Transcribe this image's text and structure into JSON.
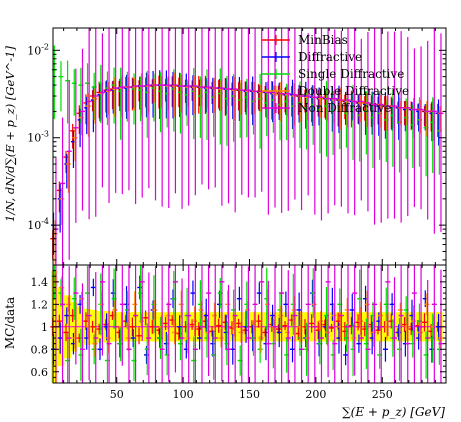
{
  "chart_data": {
    "type": "scatter",
    "title": "",
    "xlabel": "∑(E + p_z) [GeV]",
    "x_ticks": [
      50,
      100,
      150,
      200,
      250
    ],
    "xlim": [
      2,
      298
    ],
    "top_panel": {
      "ylabel": "1/N, dN/d∑(E + p_z) [GeV^-1]",
      "yscale": "log",
      "ylim": [
        3.5e-05,
        0.018
      ],
      "y_ticks": [
        {
          "value": 0.0001,
          "label": "10^-4"
        },
        {
          "value": 0.001,
          "label": "10^-3"
        },
        {
          "value": 0.01,
          "label": "10^-2"
        }
      ]
    },
    "bottom_panel": {
      "ylabel": "MC/data",
      "ylim": [
        0.5,
        1.55
      ],
      "y_ticks": [
        0.6,
        0.8,
        1,
        1.2,
        1.4
      ],
      "reference_line": 1,
      "data_uncertainty_band_color": "#ffff00"
    },
    "legend": {
      "position": "top-right",
      "entries": [
        "MinBias",
        "Diffractive",
        "Single Diffractive",
        "Double Diffractive",
        "Non Diffractive"
      ]
    },
    "colors": {
      "MinBias": "#ff0000",
      "Diffractive": "#0000ff",
      "Single Diffractive": "#00dd00",
      "Double Diffractive": "#ff8800",
      "Non Diffractive": "#dd00dd",
      "band": "#ffff00"
    },
    "x": [
      3,
      8,
      13,
      18,
      23,
      28,
      33,
      38,
      43,
      48,
      53,
      58,
      63,
      68,
      73,
      78,
      83,
      88,
      93,
      98,
      103,
      108,
      113,
      118,
      123,
      128,
      133,
      138,
      143,
      148,
      153,
      158,
      163,
      168,
      173,
      178,
      183,
      188,
      193,
      198,
      203,
      208,
      213,
      218,
      223,
      228,
      233,
      238,
      243,
      248,
      253,
      258,
      263,
      268,
      273,
      278,
      283,
      288,
      293
    ],
    "series": [
      {
        "name": "MinBias",
        "values": [
          7e-05,
          0.00025,
          0.0006,
          0.0012,
          0.0019,
          0.0025,
          0.003,
          0.0033,
          0.0035,
          0.0036,
          0.0037,
          0.0038,
          0.0038,
          0.0039,
          0.0039,
          0.0039,
          0.004,
          0.004,
          0.004,
          0.0039,
          0.0039,
          0.0039,
          0.0038,
          0.0038,
          0.0037,
          0.0037,
          0.0036,
          0.0036,
          0.0035,
          0.0035,
          0.0034,
          0.0034,
          0.0033,
          0.0033,
          0.0032,
          0.0031,
          0.0031,
          0.003,
          0.003,
          0.0029,
          0.0029,
          0.0028,
          0.0028,
          0.0027,
          0.0026,
          0.0026,
          0.0025,
          0.0025,
          0.0024,
          0.0024,
          0.0023,
          0.0023,
          0.0022,
          0.0022,
          0.0021,
          0.0021,
          0.002,
          0.002,
          0.0019
        ]
      },
      {
        "name": "Diffractive",
        "values": [
          0.0001,
          0.0002,
          0.0005,
          0.0009,
          0.0016,
          0.0022,
          0.0027,
          0.0031,
          0.0034,
          0.0035,
          0.0037,
          0.0037,
          0.0038,
          0.0039,
          0.0039,
          0.004,
          0.004,
          0.004,
          0.0039,
          0.0039,
          0.0039,
          0.0038,
          0.0038,
          0.0037,
          0.0037,
          0.0037,
          0.0036,
          0.0036,
          0.0035,
          0.0034,
          0.0034,
          0.0033,
          0.0033,
          0.0032,
          0.0032,
          0.0031,
          0.0031,
          0.003,
          0.003,
          0.0029,
          0.0028,
          0.0028,
          0.0027,
          0.0027,
          0.0026,
          0.0026,
          0.0025,
          0.0024,
          0.0024,
          0.0023,
          0.0023,
          0.0022,
          0.0022,
          0.0021,
          0.0021,
          0.002,
          0.002,
          0.0019,
          0.0019
        ]
      },
      {
        "name": "Single Diffractive",
        "values": [
          0.006,
          0.005,
          0.0045,
          0.0042,
          0.004,
          0.0042,
          0.0038,
          0.0042,
          0.0037,
          0.004,
          0.0034,
          0.0038,
          0.0036,
          0.0035,
          0.0033,
          0.0037,
          0.0034,
          0.0032,
          0.0036,
          0.0033,
          0.0031,
          0.0034,
          0.003,
          0.0033,
          0.0029,
          0.0032,
          0.0028,
          0.003,
          0.0027,
          0.0029,
          0.0026,
          0.0028,
          0.0025,
          0.0027,
          0.0024,
          0.0026,
          0.0023,
          0.0025,
          0.0022,
          0.0024,
          0.0021,
          0.0023,
          0.002,
          0.0022,
          0.0019,
          0.0021,
          0.0018,
          0.002,
          0.0017,
          0.0019,
          0.0016,
          0.0018,
          0.0015,
          0.0017,
          0.0014,
          0.0016,
          0.0013,
          0.0015,
          0.0012
        ]
      },
      {
        "name": "Double Diffractive",
        "values": [
          8e-05,
          0.0002,
          0.0005,
          0.001,
          0.0017,
          0.0023,
          0.0028,
          0.0032,
          0.0034,
          0.0036,
          0.0037,
          0.0038,
          0.0038,
          0.0039,
          0.0039,
          0.004,
          0.004,
          0.0039,
          0.0039,
          0.0039,
          0.0038,
          0.0038,
          0.0038,
          0.0037,
          0.0037,
          0.0036,
          0.0036,
          0.0035,
          0.0035,
          0.0034,
          0.0034,
          0.0033,
          0.0033,
          0.0032,
          0.0032,
          0.0031,
          0.003,
          0.003,
          0.0029,
          0.0029,
          0.0028,
          0.0028,
          0.0027,
          0.0027,
          0.0026,
          0.0026,
          0.0025,
          0.0025,
          0.0024,
          0.0024,
          0.0023,
          0.0023,
          0.0022,
          0.0022,
          0.0021,
          0.0021,
          0.002,
          0.002,
          0.0019
        ]
      },
      {
        "name": "Non Diffractive",
        "values": [
          9e-05,
          0.0003,
          0.0007,
          0.0013,
          0.002,
          0.0026,
          0.003,
          0.0033,
          0.0035,
          0.0037,
          0.0038,
          0.0038,
          0.0039,
          0.0039,
          0.004,
          0.004,
          0.004,
          0.004,
          0.004,
          0.0039,
          0.0039,
          0.0039,
          0.0038,
          0.0038,
          0.0037,
          0.0037,
          0.0036,
          0.0036,
          0.0035,
          0.0035,
          0.0034,
          0.0034,
          0.0033,
          0.0033,
          0.0032,
          0.0032,
          0.0031,
          0.003,
          0.003,
          0.0029,
          0.0029,
          0.0028,
          0.0028,
          0.0027,
          0.0027,
          0.0026,
          0.0026,
          0.0025,
          0.0024,
          0.0024,
          0.0023,
          0.0023,
          0.0022,
          0.0022,
          0.0021,
          0.0021,
          0.002,
          0.002,
          0.0019
        ]
      }
    ],
    "ratio_band_halfwidth": [
      0.5,
      0.35,
      0.28,
      0.22,
      0.18,
      0.16,
      0.15,
      0.14,
      0.14,
      0.13,
      0.13,
      0.13,
      0.13,
      0.13,
      0.13,
      0.13,
      0.13,
      0.13,
      0.13,
      0.13,
      0.13,
      0.13,
      0.13,
      0.13,
      0.13,
      0.13,
      0.13,
      0.13,
      0.13,
      0.13,
      0.13,
      0.13,
      0.13,
      0.13,
      0.13,
      0.13,
      0.13,
      0.13,
      0.13,
      0.13,
      0.13,
      0.13,
      0.13,
      0.13,
      0.13,
      0.13,
      0.13,
      0.13,
      0.13,
      0.13,
      0.13,
      0.13,
      0.13,
      0.13,
      0.13,
      0.13,
      0.13,
      0.13,
      0.13
    ],
    "ratio_series": [
      {
        "name": "MinBias",
        "values": [
          1.0,
          1.05,
          0.95,
          1.1,
          0.9,
          1.05,
          1.0,
          0.98,
          1.02,
          1.1,
          0.95,
          1.05,
          1.0,
          0.92,
          1.08,
          1.0,
          0.97,
          1.03,
          1.06,
          0.94,
          1.0,
          1.02,
          0.98,
          1.05,
          0.96,
          1.01,
          1.04,
          0.99,
          1.03,
          0.97,
          1.0,
          1.05,
          0.95,
          1.02,
          0.98,
          1.01,
          1.06,
          0.94,
          1.0,
          1.03,
          0.97,
          1.02,
          0.99,
          1.05,
          0.96,
          1.01,
          1.04,
          0.98,
          1.02,
          0.97,
          1.0,
          1.05,
          0.95,
          1.02,
          0.98,
          1.01,
          1.04,
          0.96,
          1.0
        ]
      },
      {
        "name": "Diffractive",
        "values": [
          0.8,
          0.9,
          1.1,
          0.85,
          1.2,
          0.9,
          1.35,
          0.8,
          1.0,
          1.3,
          0.85,
          1.2,
          0.9,
          1.35,
          0.75,
          1.15,
          0.9,
          0.85,
          1.25,
          1.0,
          0.8,
          1.3,
          0.9,
          1.1,
          0.85,
          1.2,
          0.95,
          0.8,
          1.25,
          1.0,
          0.9,
          1.3,
          0.85,
          1.1,
          0.95,
          1.2,
          0.8,
          1.15,
          0.9,
          1.3,
          0.85,
          1.0,
          1.2,
          0.9,
          0.75,
          1.15,
          0.85,
          1.25,
          0.9,
          1.05,
          0.8,
          1.2,
          0.95,
          0.85,
          1.1,
          0.9,
          1.25,
          0.8,
          1.0
        ]
      },
      {
        "name": "Single Diffractive",
        "values": [
          1.45,
          1.3,
          0.7,
          1.25,
          0.75,
          1.3,
          0.8,
          1.2,
          0.7,
          1.25,
          0.85,
          1.15,
          0.7,
          1.3,
          0.8,
          1.2,
          0.9,
          0.75,
          1.25,
          0.85,
          1.1,
          0.7,
          1.2,
          0.9,
          0.75,
          1.3,
          0.85,
          1.15,
          0.7,
          1.2,
          0.9,
          0.8,
          1.25,
          0.85,
          1.15,
          0.75,
          1.2,
          0.9,
          0.8,
          1.3,
          0.85,
          1.1,
          0.75,
          1.2,
          0.9,
          0.8,
          1.25,
          0.85,
          1.1,
          0.75,
          1.2,
          0.9,
          0.8,
          1.15,
          0.85,
          1.05,
          0.75,
          0.9,
          0.8
        ]
      },
      {
        "name": "Double Diffractive",
        "values": [
          1.4,
          1.35,
          1.2,
          0.9,
          1.25,
          1.0,
          0.85,
          1.2,
          0.9,
          1.15,
          1.0,
          0.9,
          1.2,
          1.05,
          0.9,
          1.15,
          1.0,
          1.1,
          0.95,
          1.2,
          0.9,
          1.05,
          1.15,
          0.95,
          1.1,
          0.9,
          1.2,
          1.0,
          0.95,
          1.15,
          1.05,
          0.9,
          1.2,
          1.0,
          1.1,
          0.95,
          1.15,
          1.0,
          0.9,
          1.2,
          1.05,
          0.95,
          1.1,
          1.0,
          1.15,
          0.9,
          1.05,
          1.2,
          0.95,
          1.1,
          1.0,
          0.9,
          1.15,
          1.0,
          1.05,
          0.95,
          1.2,
          1.0,
          0.9
        ]
      },
      {
        "name": "Non Diffractive",
        "values": [
          1.0,
          1.2,
          0.9,
          1.3,
          0.8,
          1.1,
          0.9,
          1.4,
          0.85,
          1.0,
          1.2,
          0.8,
          1.1,
          1.4,
          0.9,
          1.0,
          0.8,
          1.2,
          1.4,
          0.9,
          1.1,
          0.8,
          1.0,
          1.3,
          0.9,
          1.4,
          0.8,
          1.1,
          1.0,
          0.9,
          1.2,
          1.4,
          0.85,
          1.0,
          1.3,
          0.9,
          1.1,
          0.8,
          1.2,
          1.0,
          0.9,
          1.4,
          0.85,
          1.1,
          1.0,
          1.3,
          0.9,
          0.8,
          1.2,
          1.0,
          1.4,
          0.9,
          1.1,
          0.85,
          1.3,
          1.0,
          0.9,
          1.2,
          0.85
        ]
      }
    ]
  }
}
